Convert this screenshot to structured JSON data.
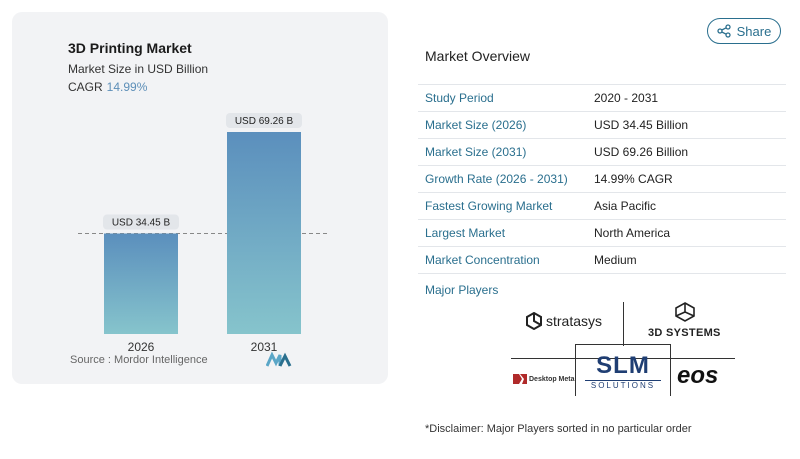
{
  "chart": {
    "title": "3D Printing Market",
    "subtitle": "Market Size in USD Billion",
    "cagr_label": "CAGR",
    "cagr_value": "14.99%",
    "source_label": "Source :",
    "source_value": "Mordor Intelligence"
  },
  "chart_data": {
    "type": "bar",
    "categories": [
      "2026",
      "2031"
    ],
    "values": [
      34.45,
      69.26
    ],
    "data_labels": [
      "USD 34.45 B",
      "USD 69.26 B"
    ],
    "reference_line_value": 34.45,
    "ylim": [
      0,
      70
    ],
    "grid": false,
    "title": "3D Printing Market",
    "subtitle": "Market Size in USD Billion",
    "colors": {
      "bar_top": "#5b8fbd",
      "bar_bottom": "#86c4cc",
      "label_bg": "#e3e6ea"
    }
  },
  "share": {
    "label": "Share"
  },
  "overview": {
    "title": "Market Overview",
    "rows": [
      {
        "key": "Study Period",
        "value": "2020 - 2031"
      },
      {
        "key": "Market Size (2026)",
        "value": "USD 34.45 Billion"
      },
      {
        "key": "Market Size (2031)",
        "value": "USD 69.26 Billion"
      },
      {
        "key": "Growth Rate (2026 - 2031)",
        "value": "14.99% CAGR"
      },
      {
        "key": "Fastest Growing Market",
        "value": "Asia Pacific"
      },
      {
        "key": "Largest Market",
        "value": "North America"
      },
      {
        "key": "Market Concentration",
        "value": "Medium"
      }
    ]
  },
  "players": {
    "title": "Major Players",
    "logos": {
      "stratasys": "stratasys",
      "systems3d": "3D SYSTEMS",
      "desktop_metal": "Desktop Metal",
      "slm": "SLM",
      "slm_sub": "SOLUTIONS",
      "eos": "eos"
    }
  },
  "disclaimer": "*Disclaimer: Major Players sorted in no particular order",
  "colors": {
    "accent": "#2a6f8e",
    "card_bg": "#f2f3f5"
  }
}
